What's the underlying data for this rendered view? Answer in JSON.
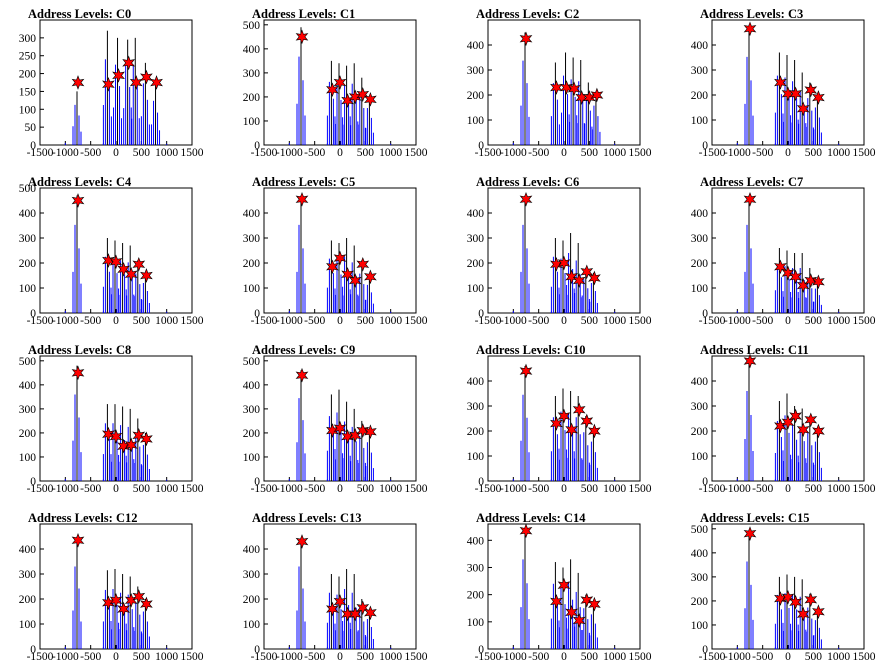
{
  "colors": {
    "spike": "#0000ff",
    "spike_dark": "#000000",
    "star": "#ff0000",
    "star_outline": "#000000"
  },
  "chart_data": [
    {
      "type": "histogram",
      "title": "Address Levels: C0",
      "xlim": [
        -1500,
        1500
      ],
      "ylim": [
        0,
        350
      ],
      "xticks": [
        -1500,
        -1000,
        -500,
        0,
        500,
        1000,
        1500
      ],
      "yticks": [
        0,
        50,
        100,
        150,
        200,
        250,
        300
      ],
      "peaks": [
        {
          "x": -750,
          "y": 175
        },
        {
          "x": -150,
          "y": 170
        },
        {
          "x": 50,
          "y": 195
        },
        {
          "x": 250,
          "y": 230
        },
        {
          "x": 400,
          "y": 175
        },
        {
          "x": 600,
          "y": 190
        },
        {
          "x": 800,
          "y": 175
        }
      ],
      "spike_tops": [
        [
          -750,
          150
        ],
        [
          -150,
          320
        ],
        [
          50,
          300
        ],
        [
          250,
          295
        ],
        [
          400,
          300
        ],
        [
          600,
          230
        ],
        [
          800,
          165
        ]
      ]
    },
    {
      "type": "histogram",
      "title": "Address Levels: C1",
      "xlim": [
        -1500,
        1500
      ],
      "ylim": [
        0,
        520
      ],
      "xticks": [
        -1500,
        -1000,
        -500,
        0,
        500,
        1000,
        1500
      ],
      "yticks": [
        0,
        100,
        200,
        300,
        400,
        500
      ],
      "peaks": [
        {
          "x": -750,
          "y": 450
        },
        {
          "x": -150,
          "y": 230
        },
        {
          "x": 0,
          "y": 260
        },
        {
          "x": 150,
          "y": 185
        },
        {
          "x": 300,
          "y": 200
        },
        {
          "x": 450,
          "y": 210
        },
        {
          "x": 600,
          "y": 190
        }
      ],
      "spike_tops": [
        [
          -750,
          490
        ],
        [
          -150,
          350
        ],
        [
          0,
          340
        ],
        [
          150,
          330
        ],
        [
          300,
          340
        ],
        [
          450,
          280
        ],
        [
          600,
          205
        ]
      ]
    },
    {
      "type": "histogram",
      "title": "Address Levels: C2",
      "xlim": [
        -1500,
        1500
      ],
      "ylim": [
        0,
        500
      ],
      "xticks": [
        -1500,
        -1000,
        -500,
        0,
        500,
        1000,
        1500
      ],
      "yticks": [
        0,
        100,
        200,
        300,
        400
      ],
      "peaks": [
        {
          "x": -750,
          "y": 425
        },
        {
          "x": -150,
          "y": 230
        },
        {
          "x": 50,
          "y": 230
        },
        {
          "x": 200,
          "y": 225
        },
        {
          "x": 350,
          "y": 190
        },
        {
          "x": 500,
          "y": 190
        },
        {
          "x": 650,
          "y": 200
        }
      ],
      "spike_tops": [
        [
          -750,
          450
        ],
        [
          -150,
          330
        ],
        [
          50,
          370
        ],
        [
          200,
          350
        ],
        [
          350,
          340
        ],
        [
          500,
          250
        ],
        [
          650,
          210
        ]
      ]
    },
    {
      "type": "histogram",
      "title": "Address Levels: C3",
      "xlim": [
        -1500,
        1500
      ],
      "ylim": [
        0,
        500
      ],
      "xticks": [
        -1500,
        -1000,
        -500,
        0,
        500,
        1000,
        1500
      ],
      "yticks": [
        0,
        100,
        200,
        300,
        400
      ],
      "peaks": [
        {
          "x": -750,
          "y": 465
        },
        {
          "x": -150,
          "y": 250
        },
        {
          "x": 0,
          "y": 205
        },
        {
          "x": 150,
          "y": 205
        },
        {
          "x": 300,
          "y": 145
        },
        {
          "x": 450,
          "y": 220
        },
        {
          "x": 600,
          "y": 190
        }
      ],
      "spike_tops": [
        [
          -750,
          470
        ],
        [
          -150,
          370
        ],
        [
          0,
          360
        ],
        [
          150,
          340
        ],
        [
          300,
          290
        ],
        [
          450,
          250
        ],
        [
          600,
          200
        ]
      ]
    },
    {
      "type": "histogram",
      "title": "Address Levels: C4",
      "xlim": [
        -1500,
        1500
      ],
      "ylim": [
        0,
        500
      ],
      "xticks": [
        -1500,
        -1000,
        -500,
        0,
        500,
        1000,
        1500
      ],
      "yticks": [
        0,
        100,
        200,
        300,
        400,
        500
      ],
      "peaks": [
        {
          "x": -750,
          "y": 450
        },
        {
          "x": -150,
          "y": 210
        },
        {
          "x": 0,
          "y": 205
        },
        {
          "x": 150,
          "y": 175
        },
        {
          "x": 300,
          "y": 155
        },
        {
          "x": 450,
          "y": 195
        },
        {
          "x": 600,
          "y": 150
        }
      ],
      "spike_tops": [
        [
          -750,
          470
        ],
        [
          -150,
          300
        ],
        [
          0,
          290
        ],
        [
          150,
          280
        ],
        [
          300,
          270
        ],
        [
          450,
          210
        ],
        [
          600,
          160
        ]
      ]
    },
    {
      "type": "histogram",
      "title": "Address Levels: C5",
      "xlim": [
        -1500,
        1500
      ],
      "ylim": [
        0,
        500
      ],
      "xticks": [
        -1500,
        -1000,
        -500,
        0,
        500,
        1000,
        1500
      ],
      "yticks": [
        0,
        100,
        200,
        300,
        400
      ],
      "peaks": [
        {
          "x": -750,
          "y": 455
        },
        {
          "x": -150,
          "y": 185
        },
        {
          "x": 0,
          "y": 220
        },
        {
          "x": 150,
          "y": 155
        },
        {
          "x": 300,
          "y": 130
        },
        {
          "x": 450,
          "y": 195
        },
        {
          "x": 600,
          "y": 145
        }
      ],
      "spike_tops": [
        [
          -750,
          470
        ],
        [
          -150,
          290
        ],
        [
          0,
          280
        ],
        [
          150,
          300
        ],
        [
          300,
          270
        ],
        [
          450,
          210
        ],
        [
          600,
          150
        ]
      ]
    },
    {
      "type": "histogram",
      "title": "Address Levels: C6",
      "xlim": [
        -1500,
        1500
      ],
      "ylim": [
        0,
        500
      ],
      "xticks": [
        -1500,
        -1000,
        -500,
        0,
        500,
        1000,
        1500
      ],
      "yticks": [
        0,
        100,
        200,
        300,
        400
      ],
      "peaks": [
        {
          "x": -750,
          "y": 455
        },
        {
          "x": -150,
          "y": 195
        },
        {
          "x": 0,
          "y": 200
        },
        {
          "x": 150,
          "y": 145
        },
        {
          "x": 300,
          "y": 130
        },
        {
          "x": 450,
          "y": 165
        },
        {
          "x": 600,
          "y": 140
        }
      ],
      "spike_tops": [
        [
          -750,
          470
        ],
        [
          -150,
          300
        ],
        [
          0,
          290
        ],
        [
          150,
          320
        ],
        [
          300,
          280
        ],
        [
          450,
          180
        ],
        [
          600,
          160
        ]
      ]
    },
    {
      "type": "histogram",
      "title": "Address Levels: C7",
      "xlim": [
        -1500,
        1500
      ],
      "ylim": [
        0,
        500
      ],
      "xticks": [
        -1500,
        -1000,
        -500,
        0,
        500,
        1000,
        1500
      ],
      "yticks": [
        0,
        100,
        200,
        300,
        400
      ],
      "peaks": [
        {
          "x": -750,
          "y": 455
        },
        {
          "x": -150,
          "y": 185
        },
        {
          "x": 0,
          "y": 160
        },
        {
          "x": 150,
          "y": 145
        },
        {
          "x": 300,
          "y": 110
        },
        {
          "x": 450,
          "y": 130
        },
        {
          "x": 600,
          "y": 125
        }
      ],
      "spike_tops": [
        [
          -750,
          470
        ],
        [
          -150,
          260
        ],
        [
          0,
          250
        ],
        [
          150,
          240
        ],
        [
          300,
          240
        ],
        [
          450,
          180
        ],
        [
          600,
          130
        ]
      ]
    },
    {
      "type": "histogram",
      "title": "Address Levels: C8",
      "xlim": [
        -1500,
        1500
      ],
      "ylim": [
        0,
        520
      ],
      "xticks": [
        -1500,
        -1000,
        -500,
        0,
        500,
        1000,
        1500
      ],
      "yticks": [
        0,
        100,
        200,
        300,
        400,
        500
      ],
      "peaks": [
        {
          "x": -750,
          "y": 450
        },
        {
          "x": -150,
          "y": 195
        },
        {
          "x": 0,
          "y": 185
        },
        {
          "x": 150,
          "y": 145
        },
        {
          "x": 300,
          "y": 150
        },
        {
          "x": 450,
          "y": 190
        },
        {
          "x": 600,
          "y": 175
        }
      ],
      "spike_tops": [
        [
          -750,
          480
        ],
        [
          -150,
          320
        ],
        [
          0,
          320
        ],
        [
          150,
          310
        ],
        [
          300,
          300
        ],
        [
          450,
          260
        ],
        [
          600,
          200
        ]
      ]
    },
    {
      "type": "histogram",
      "title": "Address Levels: C9",
      "xlim": [
        -1500,
        1500
      ],
      "ylim": [
        0,
        520
      ],
      "xticks": [
        -1500,
        -1000,
        -500,
        0,
        500,
        1000,
        1500
      ],
      "yticks": [
        0,
        100,
        200,
        300,
        400,
        500
      ],
      "peaks": [
        {
          "x": -750,
          "y": 440
        },
        {
          "x": -150,
          "y": 210
        },
        {
          "x": 0,
          "y": 220
        },
        {
          "x": 150,
          "y": 185
        },
        {
          "x": 300,
          "y": 190
        },
        {
          "x": 450,
          "y": 210
        },
        {
          "x": 600,
          "y": 205
        }
      ],
      "spike_tops": [
        [
          -750,
          460
        ],
        [
          -150,
          360
        ],
        [
          0,
          380
        ],
        [
          150,
          330
        ],
        [
          300,
          300
        ],
        [
          450,
          250
        ],
        [
          600,
          215
        ]
      ]
    },
    {
      "type": "histogram",
      "title": "Address Levels: C10",
      "xlim": [
        -1500,
        1500
      ],
      "ylim": [
        0,
        500
      ],
      "xticks": [
        -1500,
        -1000,
        -500,
        0,
        500,
        1000,
        1500
      ],
      "yticks": [
        0,
        100,
        200,
        300,
        400
      ],
      "peaks": [
        {
          "x": -750,
          "y": 440
        },
        {
          "x": -150,
          "y": 230
        },
        {
          "x": 0,
          "y": 260
        },
        {
          "x": 150,
          "y": 205
        },
        {
          "x": 300,
          "y": 285
        },
        {
          "x": 450,
          "y": 240
        },
        {
          "x": 600,
          "y": 200
        }
      ],
      "spike_tops": [
        [
          -750,
          460
        ],
        [
          -150,
          340
        ],
        [
          0,
          370
        ],
        [
          150,
          360
        ],
        [
          300,
          340
        ],
        [
          450,
          260
        ],
        [
          600,
          210
        ]
      ]
    },
    {
      "type": "histogram",
      "title": "Address Levels: C11",
      "xlim": [
        -1500,
        1500
      ],
      "ylim": [
        0,
        500
      ],
      "xticks": [
        -1500,
        -1000,
        -500,
        0,
        500,
        1000,
        1500
      ],
      "yticks": [
        0,
        100,
        200,
        300,
        400
      ],
      "peaks": [
        {
          "x": -750,
          "y": 480
        },
        {
          "x": -150,
          "y": 220
        },
        {
          "x": 0,
          "y": 235
        },
        {
          "x": 150,
          "y": 260
        },
        {
          "x": 300,
          "y": 205
        },
        {
          "x": 450,
          "y": 245
        },
        {
          "x": 600,
          "y": 200
        }
      ],
      "spike_tops": [
        [
          -750,
          480
        ],
        [
          -150,
          320
        ],
        [
          0,
          350
        ],
        [
          150,
          300
        ],
        [
          300,
          290
        ],
        [
          450,
          260
        ],
        [
          600,
          210
        ]
      ]
    },
    {
      "type": "histogram",
      "title": "Address Levels: C12",
      "xlim": [
        -1500,
        1500
      ],
      "ylim": [
        0,
        500
      ],
      "xticks": [
        -1500,
        -1000,
        -500,
        0,
        500,
        1000,
        1500
      ],
      "yticks": [
        0,
        100,
        200,
        300,
        400
      ],
      "peaks": [
        {
          "x": -750,
          "y": 435
        },
        {
          "x": -150,
          "y": 185
        },
        {
          "x": 0,
          "y": 195
        },
        {
          "x": 150,
          "y": 160
        },
        {
          "x": 300,
          "y": 195
        },
        {
          "x": 450,
          "y": 210
        },
        {
          "x": 600,
          "y": 180
        }
      ],
      "spike_tops": [
        [
          -750,
          440
        ],
        [
          -150,
          315
        ],
        [
          0,
          320
        ],
        [
          150,
          300
        ],
        [
          300,
          290
        ],
        [
          450,
          250
        ],
        [
          600,
          200
        ]
      ]
    },
    {
      "type": "histogram",
      "title": "Address Levels: C13",
      "xlim": [
        -1500,
        1500
      ],
      "ylim": [
        0,
        500
      ],
      "xticks": [
        -1500,
        -1000,
        -500,
        0,
        500,
        1000,
        1500
      ],
      "yticks": [
        0,
        100,
        200,
        300,
        400
      ],
      "peaks": [
        {
          "x": -750,
          "y": 430
        },
        {
          "x": -150,
          "y": 160
        },
        {
          "x": 0,
          "y": 190
        },
        {
          "x": 150,
          "y": 140
        },
        {
          "x": 300,
          "y": 140
        },
        {
          "x": 450,
          "y": 165
        },
        {
          "x": 600,
          "y": 145
        }
      ],
      "spike_tops": [
        [
          -750,
          440
        ],
        [
          -150,
          300
        ],
        [
          0,
          290
        ],
        [
          150,
          320
        ],
        [
          300,
          300
        ],
        [
          450,
          200
        ],
        [
          600,
          160
        ]
      ]
    },
    {
      "type": "histogram",
      "title": "Address Levels: C14",
      "xlim": [
        -1500,
        1500
      ],
      "ylim": [
        0,
        460
      ],
      "xticks": [
        -1500,
        -1000,
        -500,
        0,
        500,
        1000,
        1500
      ],
      "yticks": [
        0,
        100,
        200,
        300,
        400
      ],
      "peaks": [
        {
          "x": -750,
          "y": 435
        },
        {
          "x": -150,
          "y": 175
        },
        {
          "x": 0,
          "y": 235
        },
        {
          "x": 150,
          "y": 135
        },
        {
          "x": 300,
          "y": 105
        },
        {
          "x": 450,
          "y": 180
        },
        {
          "x": 600,
          "y": 165
        }
      ],
      "spike_tops": [
        [
          -750,
          440
        ],
        [
          -150,
          320
        ],
        [
          0,
          300
        ],
        [
          150,
          330
        ],
        [
          300,
          280
        ],
        [
          450,
          200
        ],
        [
          600,
          170
        ]
      ]
    },
    {
      "type": "histogram",
      "title": "Address Levels: C15",
      "xlim": [
        -1500,
        1500
      ],
      "ylim": [
        0,
        520
      ],
      "xticks": [
        -1500,
        -1000,
        -500,
        0,
        500,
        1000,
        1500
      ],
      "yticks": [
        0,
        100,
        200,
        300,
        400,
        500
      ],
      "peaks": [
        {
          "x": -750,
          "y": 480
        },
        {
          "x": -150,
          "y": 210
        },
        {
          "x": 0,
          "y": 215
        },
        {
          "x": 150,
          "y": 195
        },
        {
          "x": 300,
          "y": 145
        },
        {
          "x": 450,
          "y": 205
        },
        {
          "x": 600,
          "y": 155
        }
      ],
      "spike_tops": [
        [
          -750,
          485
        ],
        [
          -150,
          300
        ],
        [
          0,
          310
        ],
        [
          150,
          300
        ],
        [
          300,
          290
        ],
        [
          450,
          230
        ],
        [
          600,
          160
        ]
      ]
    }
  ]
}
